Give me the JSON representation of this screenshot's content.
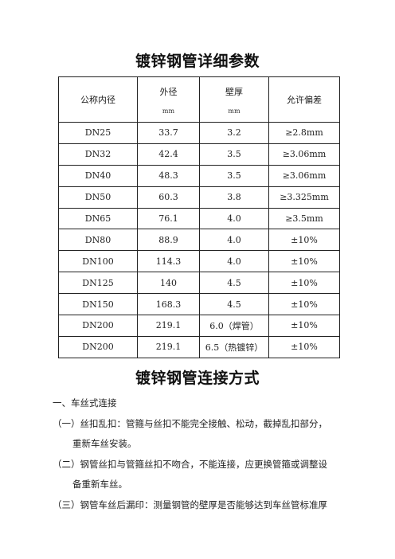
{
  "title": "镀锌钢管详细参数",
  "table": {
    "headers": {
      "nominal": "公称内径",
      "outer": "外径",
      "outer_unit": "mm",
      "wall": "壁厚",
      "wall_unit": "mm",
      "tolerance": "允许偏差"
    },
    "rows": [
      [
        "DN25",
        "33.7",
        "3.2",
        "≥2.8mm"
      ],
      [
        "DN32",
        "42.4",
        "3.5",
        "≥3.06mm"
      ],
      [
        "DN40",
        "48.3",
        "3.5",
        "≥3.06mm"
      ],
      [
        "DN50",
        "60.3",
        "3.8",
        "≥3.325mm"
      ],
      [
        "DN65",
        "76.1",
        "4.0",
        "≥3.5mm"
      ],
      [
        "DN80",
        "88.9",
        "4.0",
        "±10%"
      ],
      [
        "DN100",
        "114.3",
        "4.0",
        "±10%"
      ],
      [
        "DN125",
        "140",
        "4.5",
        "±10%"
      ],
      [
        "DN150",
        "168.3",
        "4.5",
        "±10%"
      ],
      [
        "DN200",
        "219.1",
        "6.0（焊管）",
        "±10%"
      ],
      [
        "DN200",
        "219.1",
        "6.5（热镀锌）",
        "±10%"
      ]
    ]
  },
  "section2": {
    "title": "镀锌钢管连接方式",
    "heading": "一、车丝式连接",
    "items": [
      {
        "first": "（一）丝扣乱扣：管箍与丝扣不能完全接触、松动，截掉乱扣部分，",
        "cont": "重新车丝安装。"
      },
      {
        "first": "（二）钢管丝扣与管箍丝扣不吻合，不能连接，应更换管箍或调整设",
        "cont": "备重新车丝。"
      },
      {
        "first": "（三）钢管车丝后漏印：测量钢管的壁厚是否能够达到车丝管标准厚",
        "cont": ""
      }
    ]
  }
}
